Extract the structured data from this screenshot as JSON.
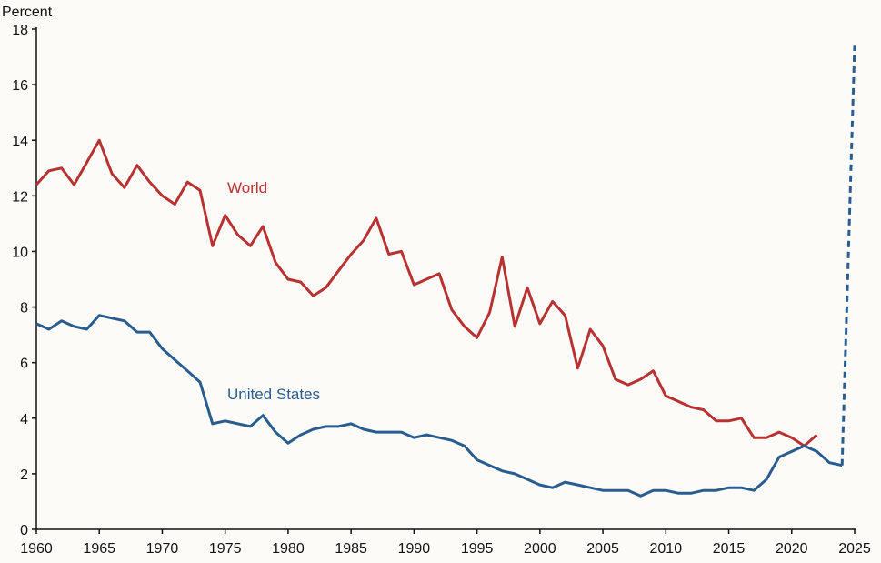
{
  "chart_data": {
    "type": "line",
    "title": "",
    "ylabel": "Percent",
    "xlabel": "",
    "xlim": [
      1960,
      2025
    ],
    "ylim": [
      0,
      18
    ],
    "xticks": [
      1960,
      1965,
      1970,
      1975,
      1980,
      1985,
      1990,
      1995,
      2000,
      2005,
      2010,
      2015,
      2020,
      2025
    ],
    "yticks": [
      0,
      2,
      4,
      6,
      8,
      10,
      12,
      14,
      16,
      18
    ],
    "grid": false,
    "series": [
      {
        "name": "World",
        "color": "#b83232",
        "x": [
          1960,
          1961,
          1962,
          1963,
          1964,
          1965,
          1966,
          1967,
          1968,
          1969,
          1970,
          1971,
          1972,
          1973,
          1974,
          1975,
          1976,
          1977,
          1978,
          1979,
          1980,
          1981,
          1982,
          1983,
          1984,
          1985,
          1986,
          1987,
          1988,
          1989,
          1990,
          1991,
          1992,
          1993,
          1994,
          1995,
          1996,
          1997,
          1998,
          1999,
          2000,
          2001,
          2002,
          2003,
          2004,
          2005,
          2006,
          2007,
          2008,
          2009,
          2010,
          2011,
          2012,
          2013,
          2014,
          2015,
          2016,
          2017,
          2018,
          2019,
          2020,
          2021,
          2022
        ],
        "y": [
          12.4,
          12.9,
          13.0,
          12.4,
          13.2,
          14.0,
          12.8,
          12.3,
          13.1,
          12.5,
          12.0,
          11.7,
          12.5,
          12.2,
          10.2,
          11.3,
          10.6,
          10.2,
          10.9,
          9.6,
          9.0,
          8.9,
          8.4,
          8.7,
          9.3,
          9.9,
          10.4,
          11.2,
          9.9,
          10.0,
          8.8,
          9.0,
          9.2,
          7.9,
          7.3,
          6.9,
          7.8,
          9.8,
          7.3,
          8.7,
          7.4,
          8.2,
          7.7,
          5.8,
          7.2,
          6.6,
          5.4,
          5.2,
          5.4,
          5.7,
          4.8,
          4.6,
          4.4,
          4.3,
          3.9,
          3.9,
          4.0,
          3.3,
          3.3,
          3.5,
          3.3,
          3.0,
          3.4
        ]
      },
      {
        "name": "United States",
        "color": "#2a5d8f",
        "x": [
          1960,
          1961,
          1962,
          1963,
          1964,
          1965,
          1966,
          1967,
          1968,
          1969,
          1970,
          1971,
          1972,
          1973,
          1974,
          1975,
          1976,
          1977,
          1978,
          1979,
          1980,
          1981,
          1982,
          1983,
          1984,
          1985,
          1986,
          1987,
          1988,
          1989,
          1990,
          1991,
          1992,
          1993,
          1994,
          1995,
          1996,
          1997,
          1998,
          1999,
          2000,
          2001,
          2002,
          2003,
          2004,
          2005,
          2006,
          2007,
          2008,
          2009,
          2010,
          2011,
          2012,
          2013,
          2014,
          2015,
          2016,
          2017,
          2018,
          2019,
          2020,
          2021,
          2022,
          2023,
          2024
        ],
        "y": [
          7.4,
          7.2,
          7.5,
          7.3,
          7.2,
          7.7,
          7.6,
          7.5,
          7.1,
          7.1,
          6.5,
          6.1,
          5.7,
          5.3,
          3.8,
          3.9,
          3.8,
          3.7,
          4.1,
          3.5,
          3.1,
          3.4,
          3.6,
          3.7,
          3.7,
          3.8,
          3.6,
          3.5,
          3.5,
          3.5,
          3.3,
          3.4,
          3.3,
          3.2,
          3.0,
          2.5,
          2.3,
          2.1,
          2.0,
          1.8,
          1.6,
          1.5,
          1.7,
          1.6,
          1.5,
          1.4,
          1.4,
          1.4,
          1.2,
          1.4,
          1.4,
          1.3,
          1.3,
          1.4,
          1.4,
          1.5,
          1.5,
          1.4,
          1.8,
          2.6,
          2.8,
          3.0,
          2.8,
          2.4,
          2.3
        ],
        "dashed_extension": {
          "x": [
            2024,
            2025
          ],
          "y": [
            2.3,
            17.4
          ]
        }
      }
    ]
  }
}
